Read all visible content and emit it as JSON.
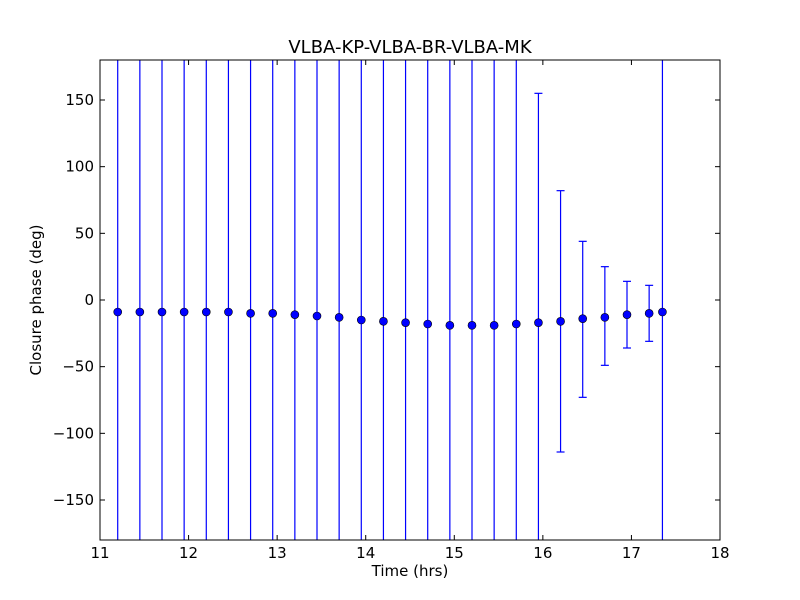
{
  "chart_data": {
    "type": "scatter",
    "title": "VLBA-KP-VLBA-BR-VLBA-MK",
    "xlabel": "Time (hrs)",
    "ylabel": "Closure phase (deg)",
    "xlim": [
      11,
      18
    ],
    "ylim": [
      -180,
      180
    ],
    "xticks": [
      11,
      12,
      13,
      14,
      15,
      16,
      17,
      18
    ],
    "xtick_labels": [
      "11",
      "12",
      "13",
      "14",
      "15",
      "16",
      "17",
      "18"
    ],
    "yticks": [
      -150,
      -100,
      -50,
      0,
      50,
      100,
      150
    ],
    "ytick_labels": [
      "−150",
      "−100",
      "−50",
      "0",
      "50",
      "100",
      "150"
    ],
    "grid": false,
    "marker_color": "#0000ff",
    "errorbar_color": "#0000ff",
    "x": [
      11.2,
      11.45,
      11.7,
      11.95,
      12.2,
      12.45,
      12.7,
      12.95,
      13.2,
      13.45,
      13.7,
      13.95,
      14.2,
      14.45,
      14.7,
      14.95,
      15.2,
      15.45,
      15.7,
      15.95,
      16.2,
      16.45,
      16.7,
      16.95,
      17.2,
      17.35
    ],
    "y": [
      -9,
      -9,
      -9,
      -9,
      -9,
      -9,
      -10,
      -10,
      -11,
      -12,
      -13,
      -15,
      -16,
      -17,
      -18,
      -19,
      -19,
      -19,
      -18,
      -17,
      -16,
      -14,
      -13,
      -11,
      -10,
      -9
    ],
    "yerr_low": [
      -180,
      -180,
      -180,
      -180,
      -180,
      -180,
      -180,
      -180,
      -180,
      -180,
      -180,
      -180,
      -180,
      -180,
      -180,
      -180,
      -180,
      -180,
      -180,
      -180,
      -114,
      -73,
      -49,
      -36,
      -31,
      -180
    ],
    "yerr_high": [
      180,
      180,
      180,
      180,
      180,
      180,
      180,
      180,
      180,
      180,
      180,
      180,
      180,
      180,
      180,
      180,
      180,
      180,
      180,
      155,
      82,
      44,
      25,
      14,
      11,
      180
    ]
  }
}
